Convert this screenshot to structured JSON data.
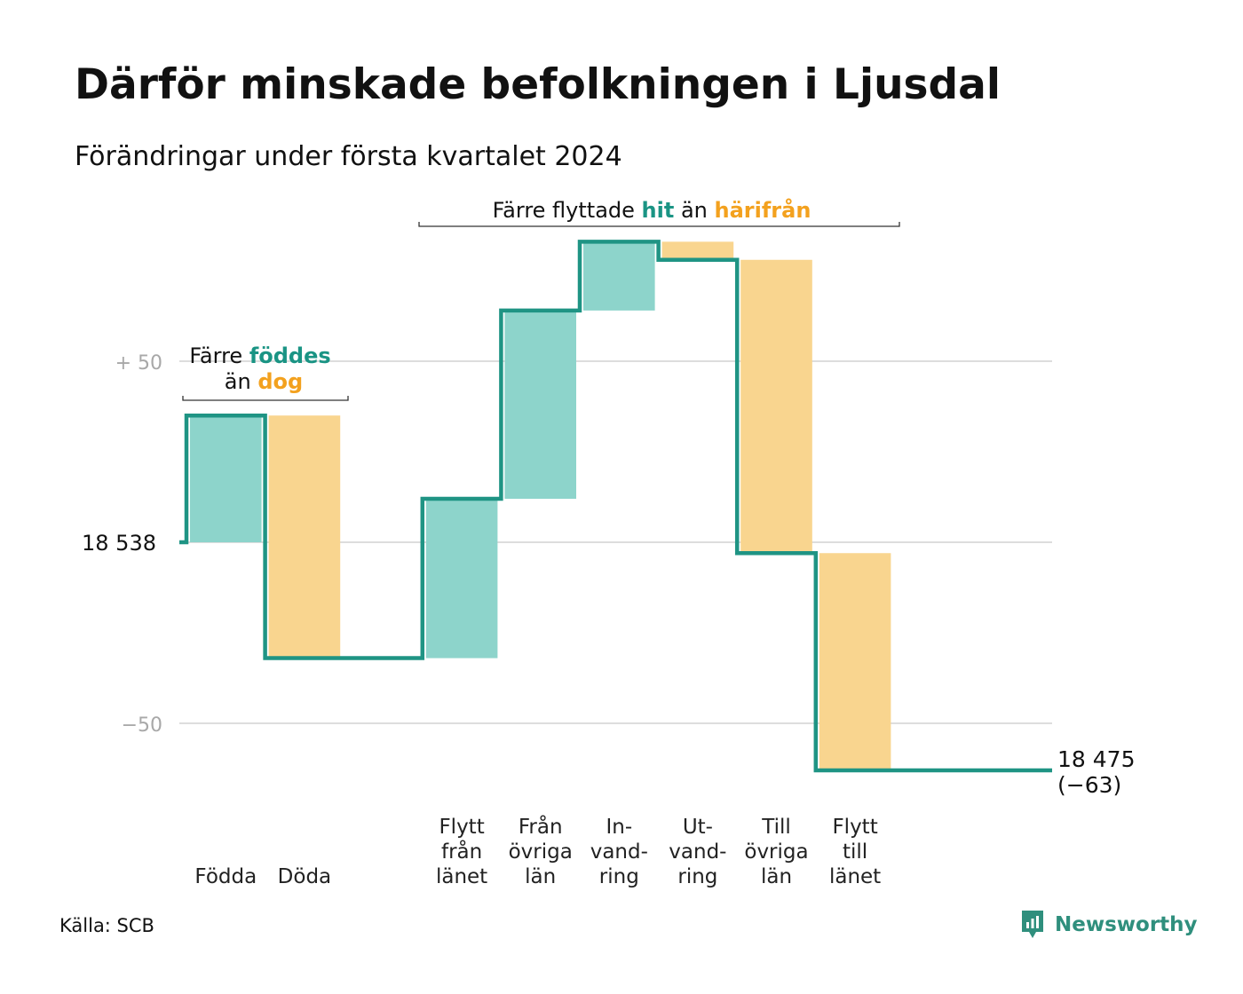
{
  "title": "Därför minskade befolkningen i Ljusdal",
  "subtitle": "Förändringar under första kvartalet 2024",
  "source": "Källa: SCB",
  "brand": "Newsworthy",
  "colors": {
    "increase_fill": "#8dd4cb",
    "decrease_fill": "#f9d58f",
    "line": "#1f9484",
    "accent_teal": "#1a9484",
    "accent_orange": "#f3a11e",
    "grid": "#dddddd",
    "tick_text": "#a8a8a8"
  },
  "chart_data": {
    "type": "waterfall",
    "start_value": 18538,
    "end_value": 18475,
    "ylim": [
      -63,
      84
    ],
    "y_ticks": [
      {
        "value": 50,
        "label": "+  50"
      },
      {
        "value": 0,
        "label": "18  538"
      },
      {
        "value": -50,
        "label": "−50"
      }
    ],
    "categories": [
      {
        "label": [
          "Födda"
        ],
        "delta": 35
      },
      {
        "label": [
          "Döda"
        ],
        "delta": -67
      },
      {
        "label": [],
        "delta": 0
      },
      {
        "label": [
          "Flytt",
          "från",
          "länet"
        ],
        "delta": 44
      },
      {
        "label": [
          "Från",
          "övriga",
          "län"
        ],
        "delta": 52
      },
      {
        "label": [
          "In-",
          "vand-",
          "ring"
        ],
        "delta": 19
      },
      {
        "label": [
          "Ut-",
          "vand-",
          "ring"
        ],
        "delta": -5
      },
      {
        "label": [
          "Till",
          "övriga",
          "län"
        ],
        "delta": -81
      },
      {
        "label": [
          "Flytt",
          "till",
          "länet"
        ],
        "delta": -60
      }
    ],
    "end_label": [
      "18 475",
      "(−63)"
    ],
    "annotations": {
      "births": {
        "line1_plain": "Färre ",
        "line1_accent": "föddes",
        "line2_plain": "än ",
        "line2_accent": "dog"
      },
      "moves": {
        "plain1": "Färre flyttade ",
        "accent1": "hit",
        "plain2": " än ",
        "accent2": "härifrån"
      }
    }
  }
}
